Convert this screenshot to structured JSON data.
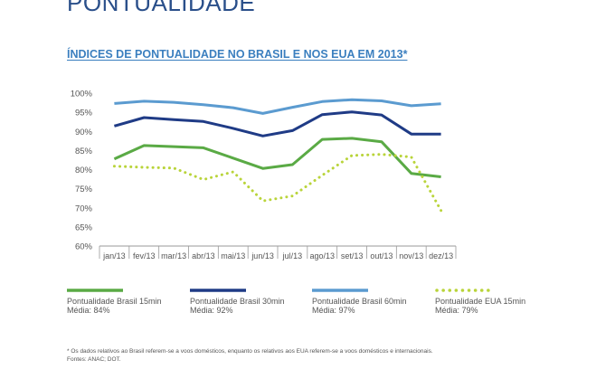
{
  "page": {
    "header": "PONTUALIDADE",
    "title": "ÍNDICES DE PONTUALIDADE NO BRASIL E NOS EUA EM 2013*",
    "footnote": "* Os dados relativos ao Brasil referem-se a voos domésticos, enquanto os relativos aos EUA referem-se a voos domésticos e internacionais.",
    "source": "Fontes: ANAC; DOT."
  },
  "legend": [
    {
      "label": "Pontualidade Brasil 15min",
      "avg": "Média: 84%",
      "color": "#5aaa45",
      "style": "solid"
    },
    {
      "label": "Pontualidade Brasil 30min",
      "avg": "Média: 92%",
      "color": "#1f3b86",
      "style": "solid"
    },
    {
      "label": "Pontualidade Brasil 60min",
      "avg": "Média: 97%",
      "color": "#5b9bd0",
      "style": "solid"
    },
    {
      "label": "Pontualidade EUA 15min",
      "avg": "Média: 79%",
      "color": "#b9d43a",
      "style": "dotted"
    }
  ],
  "chart_data": {
    "type": "line",
    "categories": [
      "jan/13",
      "fev/13",
      "mar/13",
      "abr/13",
      "mai/13",
      "jun/13",
      "jul/13",
      "ago/13",
      "set/13",
      "out/13",
      "nov/13",
      "dez/13"
    ],
    "y_ticks": [
      "60%",
      "65%",
      "70%",
      "75%",
      "80%",
      "85%",
      "90%",
      "95%",
      "100%"
    ],
    "ylim": [
      60,
      100
    ],
    "grid": false,
    "series": [
      {
        "name": "Pontualidade Brasil 15min",
        "color": "#5aaa45",
        "style": "solid",
        "values": [
          82.8,
          86.3,
          86.0,
          85.7,
          83.0,
          80.3,
          81.3,
          87.9,
          88.2,
          87.3,
          79.0,
          78.1
        ]
      },
      {
        "name": "Pontualidade Brasil 30min",
        "color": "#1f3b86",
        "style": "solid",
        "values": [
          91.4,
          93.6,
          93.1,
          92.6,
          90.8,
          88.8,
          90.2,
          94.4,
          95.1,
          94.3,
          89.3,
          89.3
        ]
      },
      {
        "name": "Pontualidade Brasil 60min",
        "color": "#5b9bd0",
        "style": "solid",
        "values": [
          97.3,
          97.9,
          97.6,
          97.0,
          96.2,
          94.7,
          96.3,
          97.8,
          98.3,
          98.0,
          96.7,
          97.2
        ]
      },
      {
        "name": "Pontualidade EUA 15min",
        "color": "#b9d43a",
        "style": "dotted",
        "values": [
          80.9,
          80.6,
          80.4,
          77.4,
          79.4,
          71.8,
          73.1,
          78.5,
          83.7,
          84.0,
          83.3,
          69.3
        ]
      }
    ]
  }
}
